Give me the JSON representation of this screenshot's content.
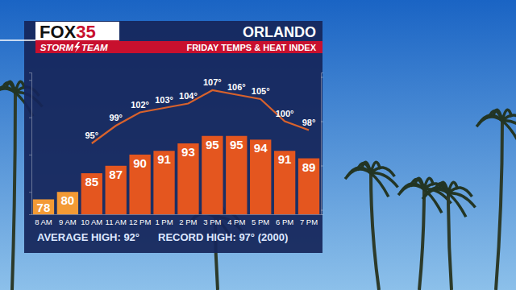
{
  "chart_data": {
    "type": "bar",
    "logo": {
      "name": "FOX",
      "number": "35",
      "team_left": "STORM",
      "team_right": "TEAM"
    },
    "title": "ORLANDO",
    "subtitle": "FRIDAY TEMPS & HEAT INDEX",
    "annotations": [
      "AVERAGE HIGH: 92°",
      "RECORD HIGH: 97° (2000)"
    ],
    "categories": [
      "8 AM",
      "9 AM",
      "10 AM",
      "11 AM",
      "12 PM",
      "1 PM",
      "2 PM",
      "3 PM",
      "4 PM",
      "5 PM",
      "6 PM",
      "7 PM"
    ],
    "ylim": [
      74,
      112
    ],
    "yticks": [
      80,
      90,
      100,
      110
    ],
    "y2lim": [
      79,
      111
    ],
    "y2ticks": [
      80,
      90,
      100,
      110
    ],
    "tick_labels": "x",
    "grid": false,
    "series": [
      {
        "type": "bar",
        "data_labels": true,
        "colors": [
          "#f39a35",
          "#f39a35",
          "#e4561f",
          "#e4561f",
          "#e4561f",
          "#e4561f",
          "#e4561f",
          "#e4561f",
          "#e4561f",
          "#e4561f",
          "#e4561f",
          "#e4561f"
        ],
        "values": [
          78,
          80,
          85,
          87,
          90,
          91,
          93,
          95,
          95,
          94,
          91,
          89
        ]
      },
      {
        "type": "line",
        "axis": "y2",
        "color": "#d8622c",
        "line_style": "solid",
        "data_labels": true,
        "values": [
          null,
          null,
          95,
          99,
          102,
          103,
          104,
          107,
          106,
          105,
          100,
          98
        ],
        "value_labels": [
          null,
          null,
          "95°",
          "99°",
          "102°",
          "103°",
          "104°",
          "107°",
          "106°",
          "105°",
          "100°",
          "98°"
        ]
      }
    ]
  }
}
